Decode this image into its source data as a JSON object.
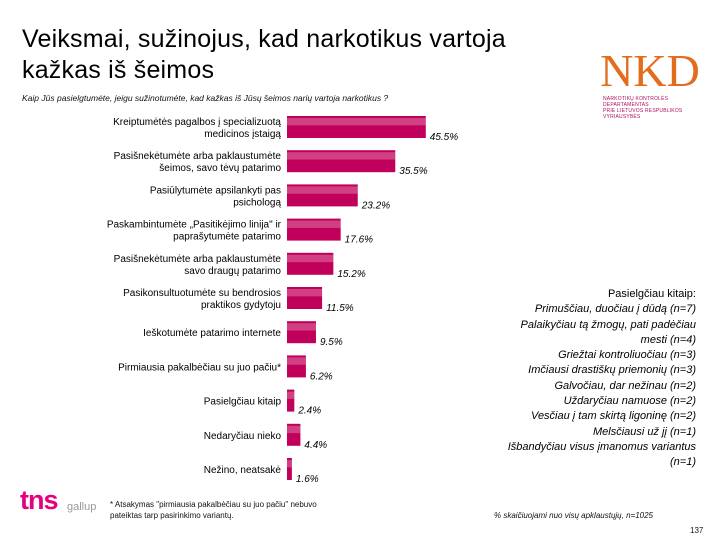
{
  "title": "Veiksmai, sužinojus, kad narkotikus vartoja kažkas iš šeimos",
  "question": "Kaip Jūs pasielgtumėte, jeigu sužinotumėte, kad kažkas iš Jūsų šeimos narių vartoja narkotikus ?",
  "logo": {
    "letters": "NKD",
    "line1": "NARKOTIKŲ KONTROLĖS DEPARTAMENTAS",
    "line2": "PRIE LIETUVOS RESPUBLIKOS VYRIAUSYBĖS"
  },
  "chart_data": {
    "type": "bar",
    "orientation": "horizontal",
    "unit": "%",
    "xlim": [
      0,
      50
    ],
    "bar_color": "#c0005a",
    "categories": [
      [
        "Kreiptumėtės pagalbos į specializuotą",
        "medicinos įstaigą"
      ],
      [
        "Pasišnekėtumėte arba paklaustumėte",
        "šeimos, savo tėvų patarimo"
      ],
      [
        "Pasiūlytumėte apsilankyti pas",
        "psichologą"
      ],
      [
        "Paskambintumėte „Pasitikėjimo linija\" ir",
        "paprašytumėte patarimo"
      ],
      [
        "Pasišnekėtumėte arba paklaustumėte",
        "savo draugų patarimo"
      ],
      [
        "Pasikonsultuotumėte su bendrosios",
        "praktikos gydytoju"
      ],
      [
        "Ieškotumėte patarimo internete"
      ],
      [
        "Pirmiausia pakalbėčiau su juo pačiu*"
      ],
      [
        "Pasielgčiau kitaip"
      ],
      [
        "Nedaryčiau nieko"
      ],
      [
        "Nežino, neatsakė"
      ]
    ],
    "values": [
      45.5,
      35.5,
      23.2,
      17.6,
      15.2,
      11.5,
      9.5,
      6.2,
      2.4,
      4.4,
      1.6
    ],
    "value_labels": [
      "45.5%",
      "35.5%",
      "23.2%",
      "17.6%",
      "15.2%",
      "11.5%",
      "9.5%",
      "6.2%",
      "2.4%",
      "4.4%",
      "1.6%"
    ]
  },
  "other": {
    "heading": "Pasielgčiau kitaip:",
    "items": [
      "Primuščiau, duočiau į dūdą (n=7)",
      "Palaikyčiau tą žmogų, pati padėčiau",
      "mesti (n=4)",
      "Griežtai kontroliuočiau (n=3)",
      "Imčiausi drastiškų priemonių (n=3)",
      "Galvočiau, dar nežinau (n=2)",
      "Uždaryčiau namuose (n=2)",
      "Vesčiau į tam skirtą ligoninę (n=2)",
      "Melsčiausi už jį (n=1)",
      "Išbandyčiau visus įmanomus variantus",
      "(n=1)"
    ]
  },
  "footnote_line1": "* Atsakymas \"pirmiausia pakalbėčiau su juo pačiu\" nebuvo",
  "footnote_line2": "pateiktas tarp pasirinkimo variantų.",
  "basis": "% skaičiuojami nuo visų apklaustųjų, n=1025",
  "page_number": "137",
  "brand": {
    "tns": "tns",
    "gallup": "gallup"
  },
  "colors": {
    "accent": "#e5007d",
    "bar": "#c0005a"
  }
}
